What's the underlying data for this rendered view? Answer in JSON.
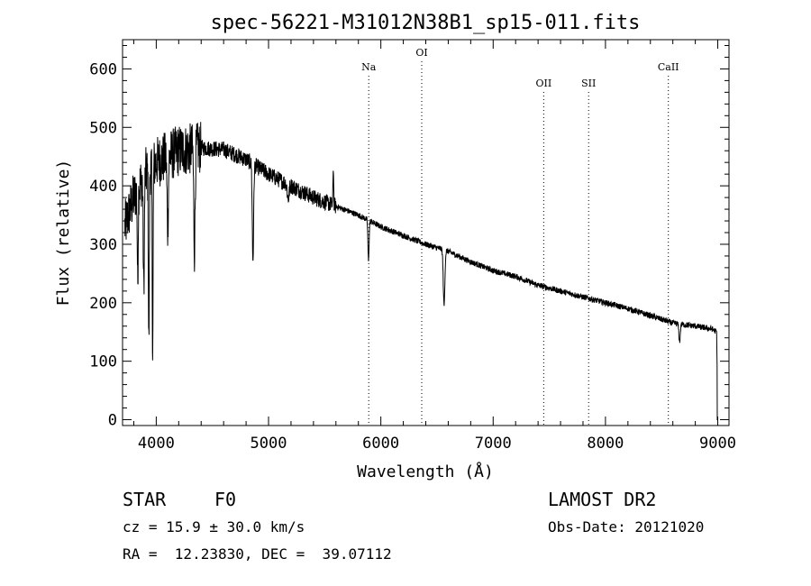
{
  "chart_data": {
    "type": "line",
    "title": "spec-56221-M31012N38B1_sp15-011.fits",
    "xlabel": "Wavelength (Å)",
    "ylabel": "Flux (relative)",
    "xlim": [
      3700,
      9100
    ],
    "ylim": [
      -10,
      650
    ],
    "xticks": [
      4000,
      5000,
      6000,
      7000,
      8000,
      9000
    ],
    "yticks": [
      0,
      100,
      200,
      300,
      400,
      500,
      600
    ],
    "grid": false,
    "continuum_points": [
      [
        3720,
        330
      ],
      [
        3800,
        380
      ],
      [
        3900,
        420
      ],
      [
        4000,
        440
      ],
      [
        4200,
        460
      ],
      [
        4400,
        465
      ],
      [
        4600,
        462
      ],
      [
        4800,
        445
      ],
      [
        5000,
        420
      ],
      [
        5200,
        400
      ],
      [
        5400,
        380
      ],
      [
        5600,
        365
      ],
      [
        5800,
        350
      ],
      [
        6000,
        330
      ],
      [
        6200,
        315
      ],
      [
        6400,
        300
      ],
      [
        6600,
        288
      ],
      [
        6800,
        270
      ],
      [
        7000,
        255
      ],
      [
        7200,
        245
      ],
      [
        7400,
        230
      ],
      [
        7600,
        220
      ],
      [
        7800,
        210
      ],
      [
        8000,
        200
      ],
      [
        8200,
        190
      ],
      [
        8400,
        178
      ],
      [
        8600,
        165
      ],
      [
        8800,
        160
      ],
      [
        8950,
        155
      ],
      [
        8990,
        150
      ],
      [
        9000,
        0
      ]
    ],
    "absorption_features": [
      {
        "x": 3835,
        "depth": 160,
        "width": 4
      },
      {
        "x": 3889,
        "depth": 190,
        "width": 5
      },
      {
        "x": 3934,
        "depth": 300,
        "width": 4
      },
      {
        "x": 3968,
        "depth": 310,
        "width": 4
      },
      {
        "x": 4102,
        "depth": 120,
        "width": 6
      },
      {
        "x": 4340,
        "depth": 170,
        "width": 6
      },
      {
        "x": 4861,
        "depth": 165,
        "width": 6
      },
      {
        "x": 5175,
        "depth": 25,
        "width": 8
      },
      {
        "x": 5890,
        "depth": 70,
        "width": 5
      },
      {
        "x": 6563,
        "depth": 95,
        "width": 7
      },
      {
        "x": 8660,
        "depth": 30,
        "width": 6
      }
    ],
    "emission_features": [
      {
        "x": 5577,
        "height": 65,
        "width": 3
      }
    ],
    "reference_lines": [
      {
        "label": "Na",
        "x": 5892
      },
      {
        "label": "OI",
        "x": 6364
      },
      {
        "label": "OII",
        "x": 7450
      },
      {
        "label": "SII",
        "x": 7850
      },
      {
        "label": "CaII",
        "x": 8560
      }
    ]
  },
  "info": {
    "class_label": "STAR",
    "subclass": "F0",
    "survey": "LAMOST DR2",
    "redshift": "cz = 15.9 ± 30.0 km/s",
    "obs_date": "Obs-Date: 20121020",
    "coords": "RA =  12.23830, DEC =  39.07112"
  }
}
